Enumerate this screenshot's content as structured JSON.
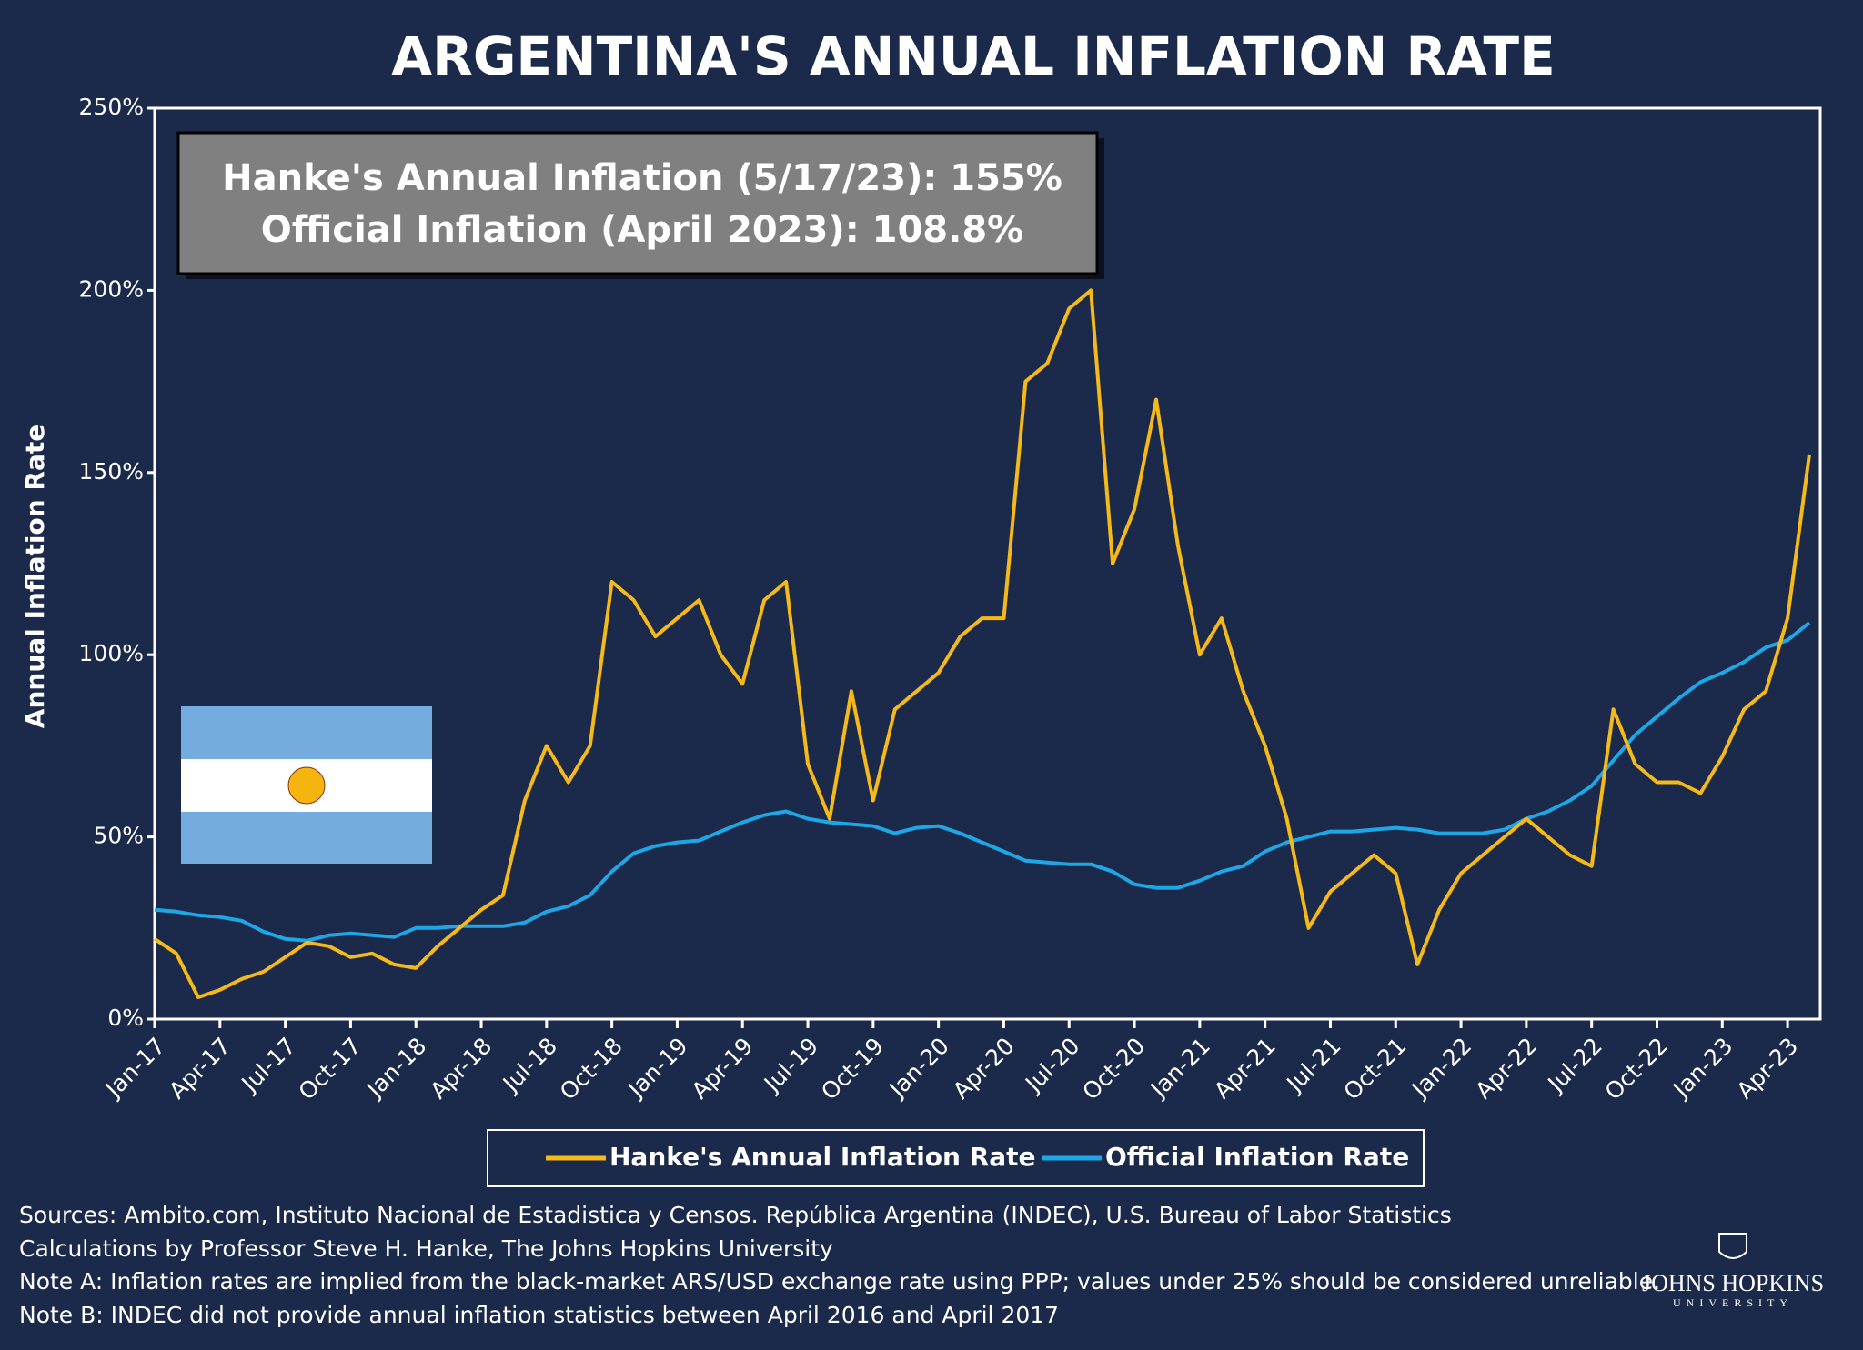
{
  "chart_data": {
    "type": "line",
    "title": "ARGENTINA'S ANNUAL INFLATION RATE",
    "annotation": [
      "Hanke's Annual Inflation (5/17/23): 155%",
      "Official Inflation (April 2023): 108.8%"
    ],
    "y_label": "Annual Inflation Rate",
    "categories": [
      "Jan-17",
      null,
      null,
      "Apr-17",
      null,
      null,
      "Jul-17",
      null,
      null,
      "Oct-17",
      null,
      null,
      "Jan-18",
      null,
      null,
      "Apr-18",
      null,
      null,
      "Jul-18",
      null,
      null,
      "Oct-18",
      null,
      null,
      "Jan-19",
      null,
      null,
      "Apr-19",
      null,
      null,
      "Jul-19",
      null,
      null,
      "Oct-19",
      null,
      null,
      "Jan-20",
      null,
      null,
      "Apr-20",
      null,
      null,
      "Jul-20",
      null,
      null,
      "Oct-20",
      null,
      null,
      "Jan-21",
      null,
      null,
      "Apr-21",
      null,
      null,
      "Jul-21",
      null,
      null,
      "Oct-21",
      null,
      null,
      "Jan-22",
      null,
      null,
      "Apr-22",
      null,
      null,
      "Jul-22",
      null,
      null,
      "Oct-22",
      null,
      null,
      "Jan-23",
      null,
      null,
      "Apr-23",
      null
    ],
    "series": [
      {
        "name": "Hanke's Annual Inflation Rate",
        "color": "#f5b919",
        "values": [
          22,
          18,
          6,
          8,
          11,
          13,
          17,
          21,
          20,
          17,
          18,
          15,
          14,
          20,
          25,
          30,
          34,
          60,
          75,
          65,
          75,
          120,
          115,
          105,
          110,
          115,
          100,
          92,
          115,
          120,
          70,
          55,
          90,
          60,
          85,
          90,
          95,
          105,
          110,
          110,
          175,
          180,
          195,
          200,
          125,
          140,
          170,
          130,
          100,
          110,
          90,
          75,
          55,
          25,
          35,
          40,
          45,
          40,
          15,
          30,
          40,
          45,
          50,
          55,
          50,
          45,
          42,
          85,
          70,
          65,
          65,
          62,
          72,
          85,
          90,
          110,
          155
        ]
      },
      {
        "name": "Official Inflation Rate",
        "color": "#1ea7e6",
        "values": [
          30,
          29.5,
          28.5,
          28,
          27,
          24,
          22,
          21.5,
          23,
          23.5,
          23,
          22.5,
          25,
          25,
          25.5,
          25.5,
          25.5,
          26.5,
          29.5,
          31,
          34,
          40.5,
          45.5,
          47.5,
          48.5,
          49,
          51.5,
          54,
          56,
          57,
          55,
          54,
          53.5,
          53,
          51,
          52.5,
          53,
          51,
          48.5,
          46,
          43.5,
          43,
          42.5,
          42.5,
          40.5,
          37,
          36,
          36,
          38,
          40.5,
          42,
          46,
          48.5,
          50,
          51.5,
          51.5,
          52,
          52.5,
          52,
          51,
          51,
          51,
          52,
          55,
          57,
          60,
          64,
          71,
          78,
          83,
          88,
          92.5,
          95,
          98,
          102,
          104,
          108.8
        ]
      }
    ],
    "ylim": [
      0,
      250
    ],
    "yticks": [
      {
        "value": 0,
        "label": "0%"
      },
      {
        "value": 50,
        "label": "50%"
      },
      {
        "value": 100,
        "label": "100%"
      },
      {
        "value": 150,
        "label": "150%"
      },
      {
        "value": 200,
        "label": "200%"
      },
      {
        "value": 250,
        "label": "250%"
      }
    ],
    "grid": false,
    "legend": "bottom",
    "notes": [
      "Sources: Ambito.com, Instituto Nacional de Estadistica y Censos. República Argentina (INDEC), U.S. Bureau of Labor Statistics",
      "Calculations by Professor Steve H. Hanke, The Johns Hopkins University",
      "Note A: Inflation rates are implied from the black-market ARS/USD exchange rate using PPP; values under 25% should be considered unreliable.",
      "Note B: INDEC did not provide annual inflation statistics between April 2016 and April 2017"
    ],
    "logo": [
      "JOHNS HOPKINS",
      "UNIVERSITY"
    ]
  }
}
